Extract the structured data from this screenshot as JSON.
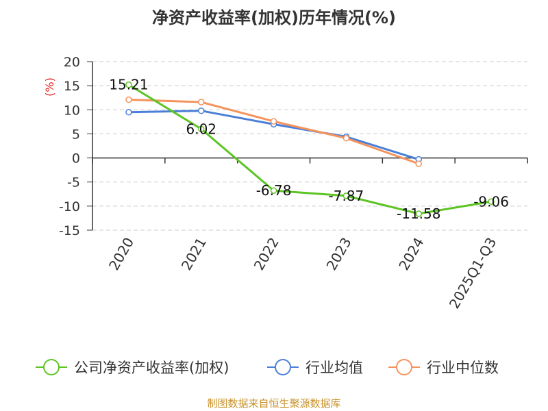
{
  "chart_data": {
    "type": "line",
    "title": "净资产收益率(加权)历年情况(%)",
    "ylabel": "(%)",
    "xlabel": "",
    "categories": [
      "2020",
      "2021",
      "2022",
      "2023",
      "2024",
      "2025Q1-Q3"
    ],
    "ylim": [
      -15,
      20
    ],
    "yticks": [
      20,
      15,
      10,
      5,
      0,
      -5,
      -10,
      -15
    ],
    "grid": true,
    "legend": "bottom",
    "series": [
      {
        "name": "公司净资产收益率(加权)",
        "color": "#5cc423",
        "values": [
          15.21,
          6.02,
          -6.78,
          -7.87,
          -11.58,
          -9.06
        ],
        "labels": [
          "15.21",
          "6.02",
          "-6.78",
          "-7.87",
          "-11.58",
          "-9.06"
        ]
      },
      {
        "name": "行业均值",
        "color": "#4a7fd8",
        "values": [
          9.5,
          9.8,
          7.0,
          4.4,
          -0.3,
          null
        ]
      },
      {
        "name": "行业中位数",
        "color": "#f4935c",
        "values": [
          12.1,
          11.6,
          7.6,
          4.1,
          -1.2,
          null
        ]
      }
    ]
  },
  "source": "制图数据来自恒生聚源数据库"
}
